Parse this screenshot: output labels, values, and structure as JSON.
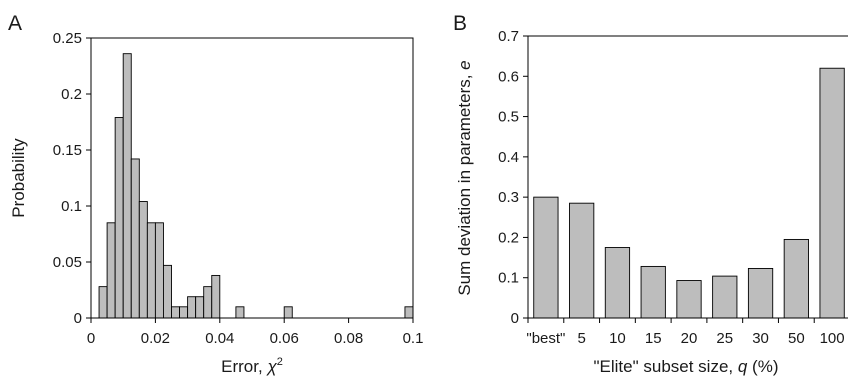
{
  "chart_data": [
    {
      "type": "bar",
      "panel_label": "A",
      "xlabel": "Error, ",
      "xlabel_symbol": "χ",
      "xlabel_sup": "2",
      "ylabel": "Probability",
      "xlim": [
        0,
        0.1
      ],
      "ylim": [
        0,
        0.25
      ],
      "xticks": [
        0,
        0.02,
        0.04,
        0.06,
        0.08,
        0.1
      ],
      "xtick_labels": [
        "0",
        "0.02",
        "0.04",
        "0.06",
        "0.08",
        "0.1"
      ],
      "yticks": [
        0,
        0.05,
        0.1,
        0.15,
        0.2,
        0.25
      ],
      "ytick_labels": [
        "0",
        "0.05",
        "0.1",
        "0.15",
        "0.2",
        "0.25"
      ],
      "bin_width": 0.0025,
      "bins_left": [
        0.0025,
        0.005,
        0.0075,
        0.01,
        0.0125,
        0.015,
        0.0175,
        0.02,
        0.0225,
        0.025,
        0.0275,
        0.03,
        0.0325,
        0.035,
        0.0375,
        0.045,
        0.06,
        0.0975
      ],
      "values": [
        0.028,
        0.085,
        0.179,
        0.236,
        0.142,
        0.104,
        0.085,
        0.085,
        0.047,
        0.01,
        0.01,
        0.019,
        0.019,
        0.028,
        0.038,
        0.01,
        0.01,
        0.01
      ],
      "grid": false,
      "box": true
    },
    {
      "type": "bar",
      "panel_label": "B",
      "xlabel": "\"Elite\" subset size, ",
      "xlabel_symbol": "q",
      "xlabel_suffix": " (%)",
      "ylabel": "Sum deviation in parameters, ",
      "ylabel_symbol": "e",
      "categories": [
        "\"best\"",
        "5",
        "10",
        "15",
        "20",
        "25",
        "30",
        "50",
        "100"
      ],
      "values": [
        0.3,
        0.285,
        0.175,
        0.128,
        0.093,
        0.104,
        0.123,
        0.195,
        0.62
      ],
      "ylim": [
        0,
        0.7
      ],
      "yticks": [
        0,
        0.1,
        0.2,
        0.3,
        0.4,
        0.5,
        0.6,
        0.7
      ],
      "ytick_labels": [
        "0",
        "0.1",
        "0.2",
        "0.3",
        "0.4",
        "0.5",
        "0.6",
        "0.7"
      ],
      "grid": false,
      "box": true
    }
  ]
}
